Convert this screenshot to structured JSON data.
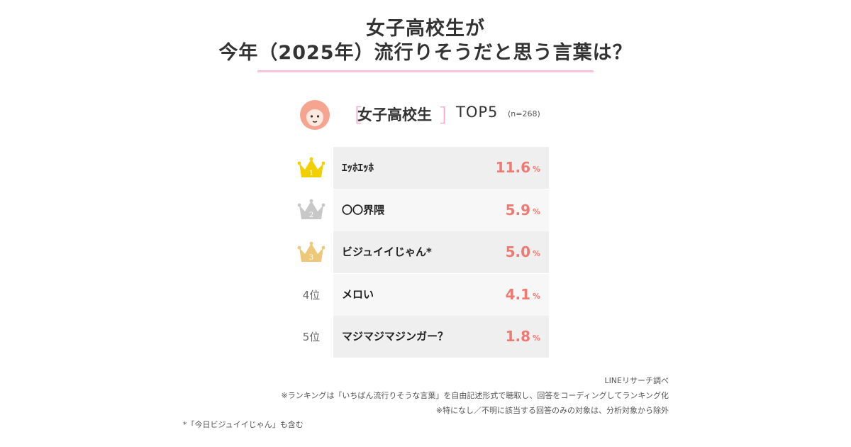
{
  "title": {
    "line1": "女子高校生が",
    "line2": "今年（2025年）流行りそうだと思う言葉は？"
  },
  "header": {
    "segment": "女子高校生",
    "bracket_left": "［",
    "bracket_right": "］",
    "topn": "TOP5",
    "n_label": "(n=268)",
    "avatar_icon": "girl-avatar-icon"
  },
  "colors": {
    "accent_pink": "#f8c3dd",
    "value_red": "#ef7a74",
    "gold": "#f2cf00",
    "silver": "#c8c8c8",
    "bronze": "#ecc878"
  },
  "chart_data": {
    "type": "table",
    "title": "女子高校生が今年（2025年）流行りそうだと思う言葉は？",
    "unit": "%",
    "rows": [
      {
        "rank": 1,
        "rank_label": "1",
        "rank_icon": "gold-crown-icon",
        "label": "ｴｯﾎｴｯﾎ",
        "value": 11.6,
        "value_text": "11.6"
      },
      {
        "rank": 2,
        "rank_label": "2",
        "rank_icon": "silver-crown-icon",
        "label": "〇〇界隈",
        "value": 5.9,
        "value_text": "5.9"
      },
      {
        "rank": 3,
        "rank_label": "3",
        "rank_icon": "bronze-crown-icon",
        "label": "ビジュイイじゃん*",
        "value": 5.0,
        "value_text": "5.0"
      },
      {
        "rank": 4,
        "rank_label": "4位",
        "rank_icon": "",
        "label": "メロい",
        "value": 4.1,
        "value_text": "4.1"
      },
      {
        "rank": 5,
        "rank_label": "5位",
        "rank_icon": "",
        "label": "マジマジマジンガー？",
        "value": 1.8,
        "value_text": "1.8"
      }
    ]
  },
  "footer": {
    "source": "LINEリサーチ調べ",
    "note1": "※ランキングは「いちばん流行りそうな言葉」を自由記述形式で聴取し、回答をコーディングしてランキング化",
    "note2": "※特になし／不明に該当する回答のみの対象は、分析対象から除外",
    "footnote": "*「今日ビジュイイじゃん」も含む"
  }
}
